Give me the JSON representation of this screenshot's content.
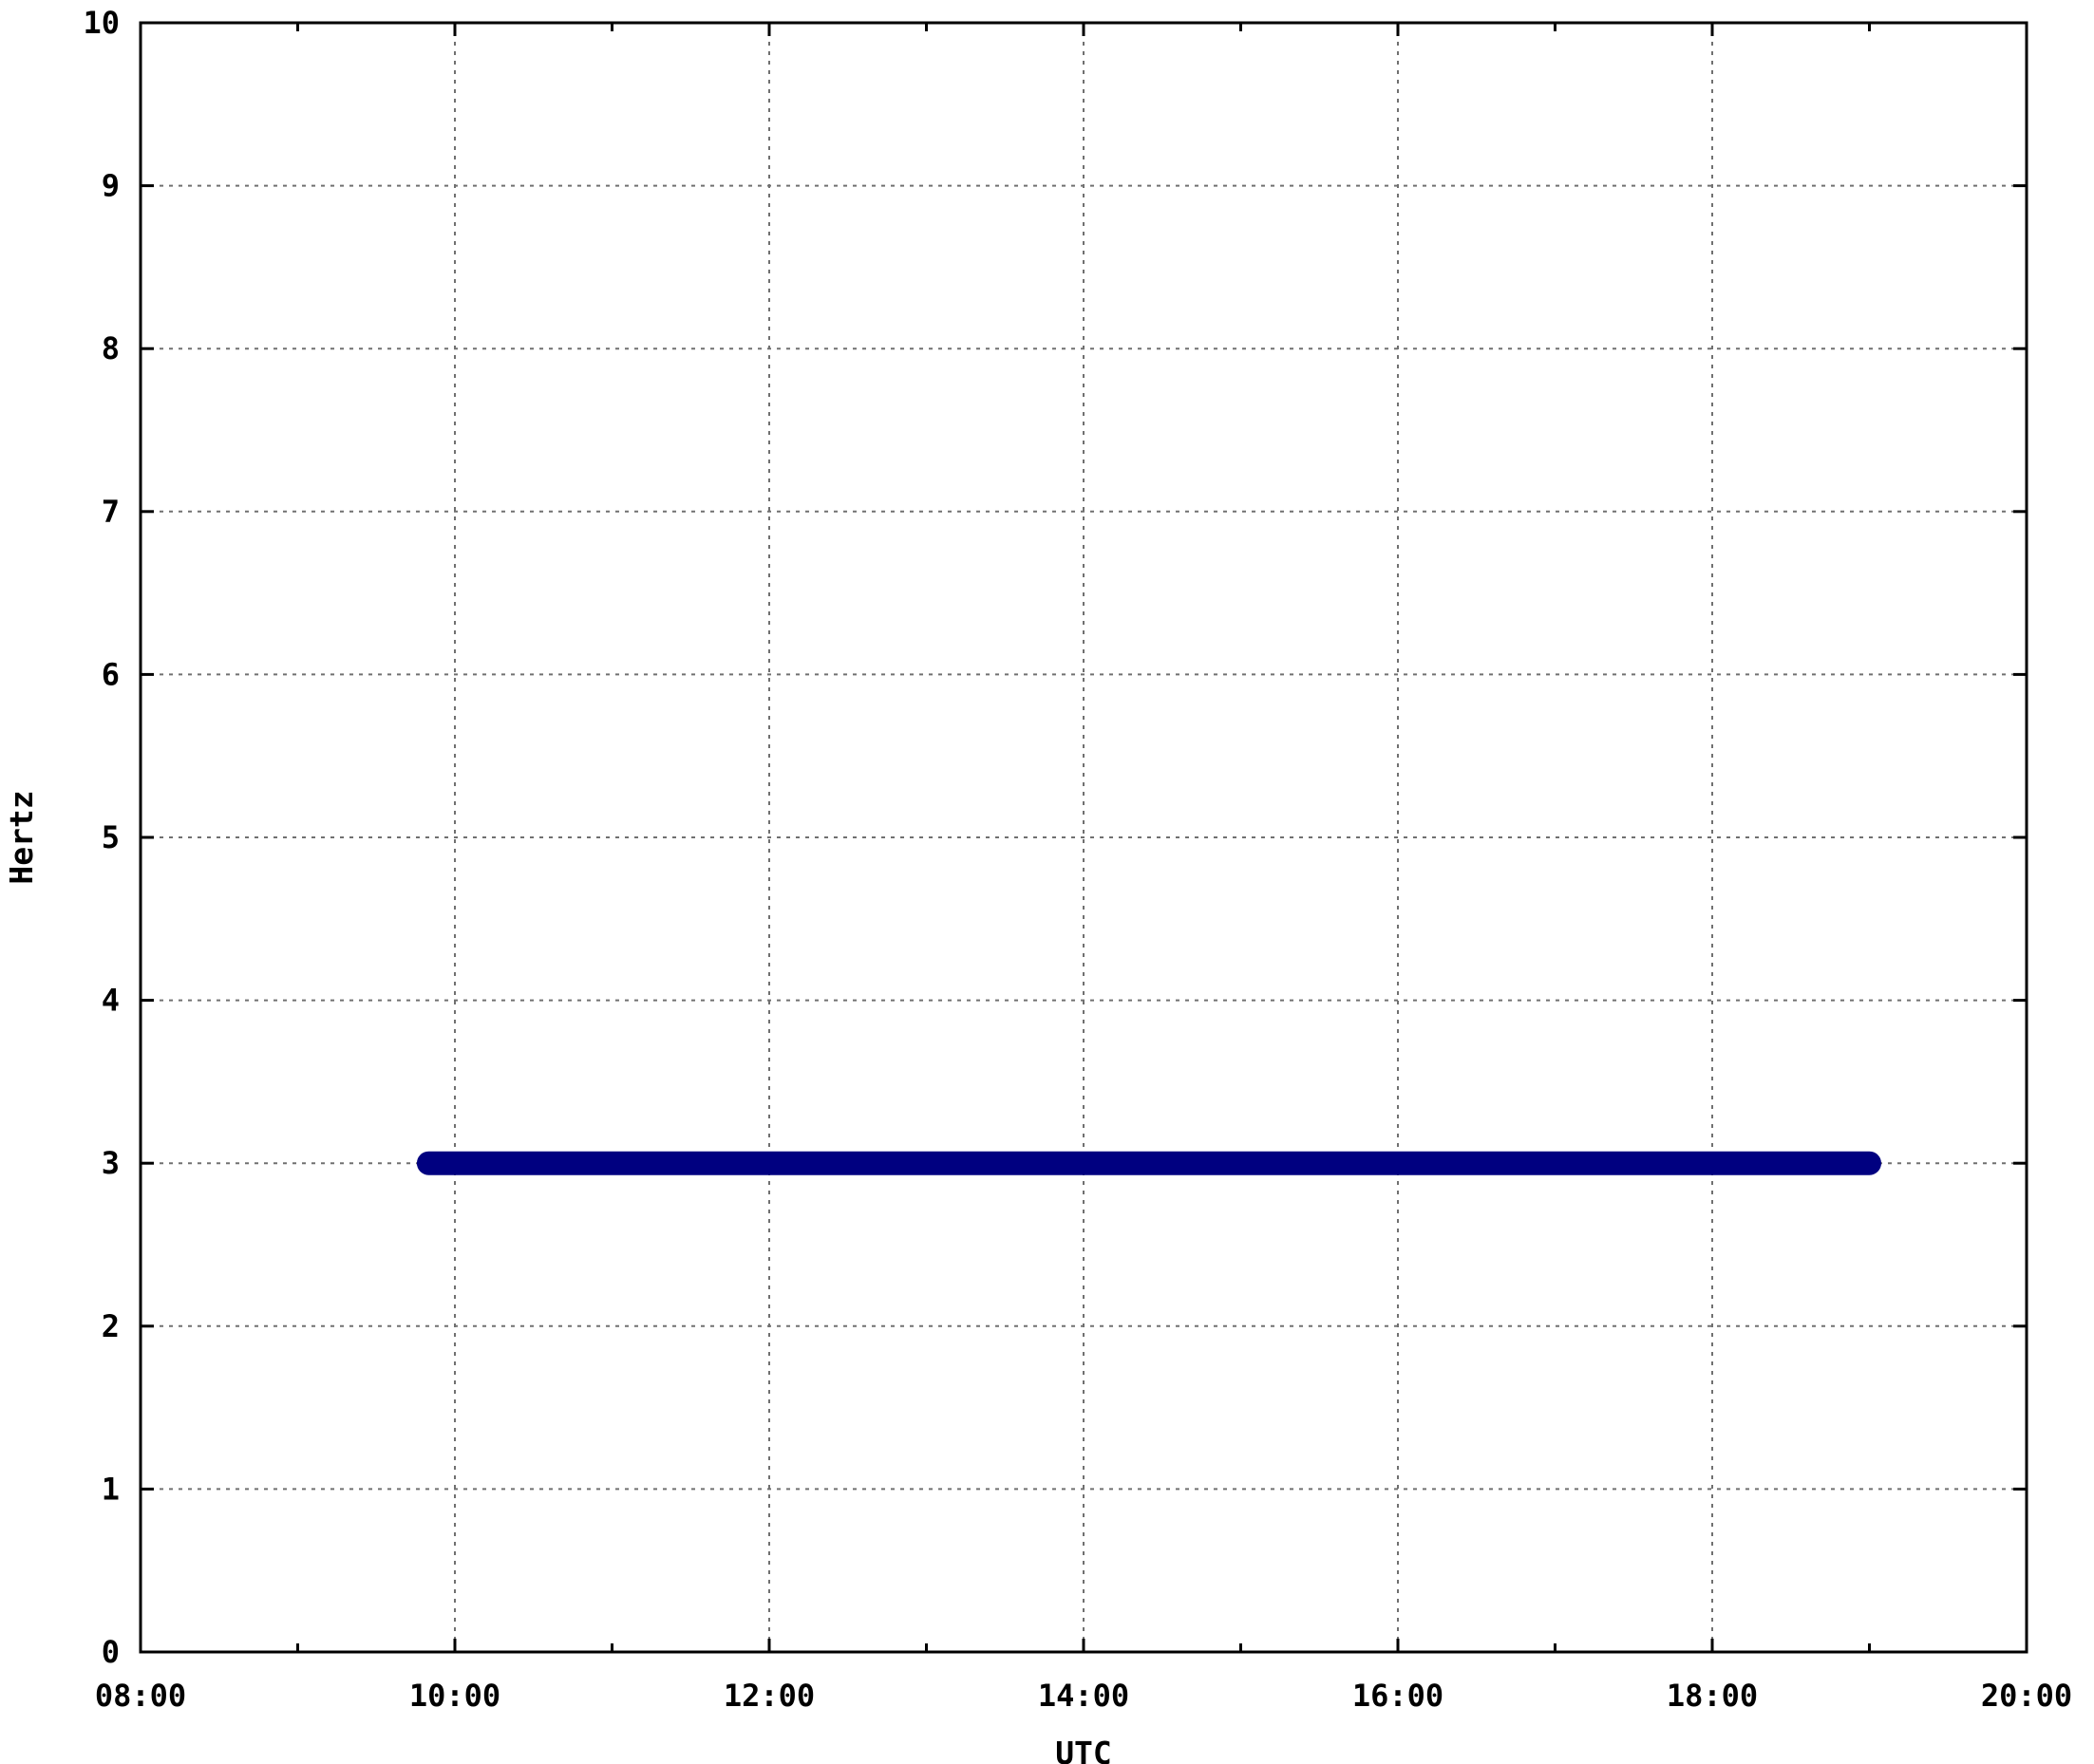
{
  "chart_data": {
    "type": "line",
    "xlabel": "UTC",
    "ylabel": "Hertz",
    "xlim": [
      "08:00",
      "20:00"
    ],
    "ylim": [
      0,
      10
    ],
    "x_ticks": [
      "08:00",
      "10:00",
      "12:00",
      "14:00",
      "16:00",
      "18:00",
      "20:00"
    ],
    "y_ticks": [
      0,
      1,
      2,
      3,
      4,
      5,
      6,
      7,
      8,
      9,
      10
    ],
    "grid": true,
    "series": [
      {
        "color": "#000080",
        "x": [
          "09:50",
          "19:00"
        ],
        "y": [
          3,
          3
        ]
      }
    ]
  }
}
